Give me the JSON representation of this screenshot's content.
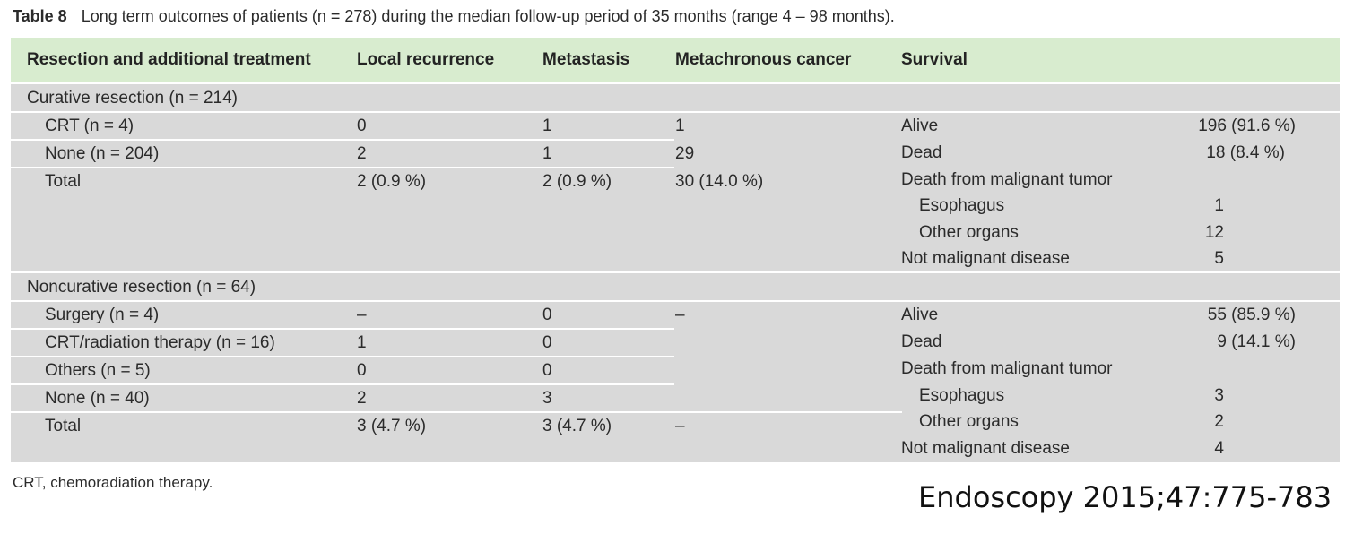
{
  "caption": {
    "label": "Table 8",
    "text": "Long term outcomes of patients (n = 278) during the median follow-up period of 35 months (range 4 – 98 months)."
  },
  "header": {
    "col1": "Resection and additional treatment",
    "col2": "Local recurrence",
    "col3": "Metastasis",
    "col4": "Metachronous cancer",
    "col5": "Survival"
  },
  "curative": {
    "title": "Curative resection (n = 214)",
    "rows": [
      {
        "treatment": "CRT (n = 4)",
        "local": "0",
        "metastasis": "1",
        "metachronous": "1"
      },
      {
        "treatment": "None (n = 204)",
        "local": "2",
        "metastasis": "1",
        "metachronous": "29"
      },
      {
        "treatment": "Total",
        "local": "2 (0.9 %)",
        "metastasis": "2 (0.9 %)",
        "metachronous": "30 (14.0 %)"
      }
    ],
    "survival": [
      {
        "label": "Alive",
        "value": "196 (91.6 %)"
      },
      {
        "label": "Dead",
        "value": "18 (8.4 %)"
      },
      {
        "label": "Death from malignant tumor",
        "value": ""
      },
      {
        "label": "Esophagus",
        "value": "1"
      },
      {
        "label": "Other organs",
        "value": "12"
      },
      {
        "label": "Not malignant disease",
        "value": "5"
      }
    ]
  },
  "noncurative": {
    "title": "Noncurative resection (n = 64)",
    "rows": [
      {
        "treatment": "Surgery (n = 4)",
        "local": "–",
        "metastasis": "0",
        "metachronous": "–"
      },
      {
        "treatment": "CRT/radiation therapy (n = 16)",
        "local": "1",
        "metastasis": "0",
        "metachronous": ""
      },
      {
        "treatment": "Others (n = 5)",
        "local": "0",
        "metastasis": "0",
        "metachronous": ""
      },
      {
        "treatment": "None (n = 40)",
        "local": "2",
        "metastasis": "3",
        "metachronous": ""
      },
      {
        "treatment": "Total",
        "local": "3 (4.7 %)",
        "metastasis": "3 (4.7 %)",
        "metachronous": "–"
      }
    ],
    "survival": [
      {
        "label": "Alive",
        "value": "55 (85.9 %)"
      },
      {
        "label": "Dead",
        "value": "9 (14.1 %)"
      },
      {
        "label": "Death from malignant tumor",
        "value": ""
      },
      {
        "label": "Esophagus",
        "value": "3"
      },
      {
        "label": "Other organs",
        "value": "2"
      },
      {
        "label": "Not malignant disease",
        "value": "4"
      }
    ]
  },
  "footnote": "CRT, chemoradiation therapy.",
  "citation": "Endoscopy 2015;47:775-783"
}
